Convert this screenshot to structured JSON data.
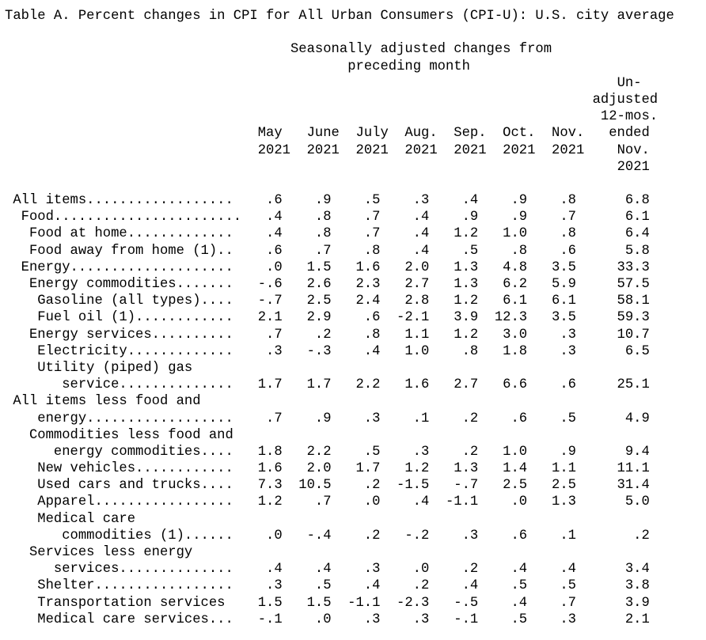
{
  "title": "Table A. Percent changes in CPI for All Urban Consumers (CPI-U): U.S. city average",
  "colors": {
    "text": "#000000",
    "background": "#ffffff"
  },
  "header": {
    "group_label_line1": "Seasonally adjusted changes from",
    "group_label_line2": "preceding month",
    "months": [
      "May",
      "June",
      "July",
      "Aug.",
      "Sep.",
      "Oct.",
      "Nov."
    ],
    "years": [
      "2021",
      "2021",
      "2021",
      "2021",
      "2021",
      "2021",
      "2021"
    ],
    "unadjusted_label_lines": [
      "Un-",
      "adjusted",
      "12-mos.",
      "ended",
      "Nov.",
      "2021"
    ]
  },
  "table": {
    "rows": [
      {
        "pre_lines": [],
        "label": " All items..................",
        "values": [
          ".6",
          ".9",
          ".5",
          ".3",
          ".4",
          ".9",
          ".8"
        ],
        "yr12": "6.8"
      },
      {
        "pre_lines": [],
        "label": "  Food.......................",
        "values": [
          ".4",
          ".8",
          ".7",
          ".4",
          ".9",
          ".9",
          ".7"
        ],
        "yr12": "6.1"
      },
      {
        "pre_lines": [],
        "label": "   Food at home.............",
        "values": [
          ".4",
          ".8",
          ".7",
          ".4",
          "1.2",
          "1.0",
          ".8"
        ],
        "yr12": "6.4"
      },
      {
        "pre_lines": [],
        "label": "   Food away from home (1)..",
        "values": [
          ".6",
          ".7",
          ".8",
          ".4",
          ".5",
          ".8",
          ".6"
        ],
        "yr12": "5.8"
      },
      {
        "pre_lines": [],
        "label": "  Energy....................",
        "values": [
          ".0",
          "1.5",
          "1.6",
          "2.0",
          "1.3",
          "4.8",
          "3.5"
        ],
        "yr12": "33.3"
      },
      {
        "pre_lines": [],
        "label": "   Energy commodities.......",
        "values": [
          "-.6",
          "2.6",
          "2.3",
          "2.7",
          "1.3",
          "6.2",
          "5.9"
        ],
        "yr12": "57.5"
      },
      {
        "pre_lines": [],
        "label": "    Gasoline (all types)....",
        "values": [
          "-.7",
          "2.5",
          "2.4",
          "2.8",
          "1.2",
          "6.1",
          "6.1"
        ],
        "yr12": "58.1"
      },
      {
        "pre_lines": [],
        "label": "    Fuel oil (1)............",
        "values": [
          "2.1",
          "2.9",
          ".6",
          "-2.1",
          "3.9",
          "12.3",
          "3.5"
        ],
        "yr12": "59.3"
      },
      {
        "pre_lines": [],
        "label": "   Energy services..........",
        "values": [
          ".7",
          ".2",
          ".8",
          "1.1",
          "1.2",
          "3.0",
          ".3"
        ],
        "yr12": "10.7"
      },
      {
        "pre_lines": [],
        "label": "    Electricity.............",
        "values": [
          ".3",
          "-.3",
          ".4",
          "1.0",
          ".8",
          "1.8",
          ".3"
        ],
        "yr12": "6.5"
      },
      {
        "pre_lines": [
          "    Utility (piped) gas"
        ],
        "label": "       service..............",
        "values": [
          "1.7",
          "1.7",
          "2.2",
          "1.6",
          "2.7",
          "6.6",
          ".6"
        ],
        "yr12": "25.1"
      },
      {
        "pre_lines": [
          " All items less food and"
        ],
        "label": "    energy..................",
        "values": [
          ".7",
          ".9",
          ".3",
          ".1",
          ".2",
          ".6",
          ".5"
        ],
        "yr12": "4.9"
      },
      {
        "pre_lines": [
          "   Commodities less food and"
        ],
        "label": "      energy commodities....",
        "values": [
          "1.8",
          "2.2",
          ".5",
          ".3",
          ".2",
          "1.0",
          ".9"
        ],
        "yr12": "9.4"
      },
      {
        "pre_lines": [],
        "label": "    New vehicles............",
        "values": [
          "1.6",
          "2.0",
          "1.7",
          "1.2",
          "1.3",
          "1.4",
          "1.1"
        ],
        "yr12": "11.1"
      },
      {
        "pre_lines": [],
        "label": "    Used cars and trucks....",
        "values": [
          "7.3",
          "10.5",
          ".2",
          "-1.5",
          "-.7",
          "2.5",
          "2.5"
        ],
        "yr12": "31.4"
      },
      {
        "pre_lines": [],
        "label": "    Apparel.................",
        "values": [
          "1.2",
          ".7",
          ".0",
          ".4",
          "-1.1",
          ".0",
          "1.3"
        ],
        "yr12": "5.0"
      },
      {
        "pre_lines": [
          "    Medical care"
        ],
        "label": "       commodities (1)......",
        "values": [
          ".0",
          "-.4",
          ".2",
          "-.2",
          ".3",
          ".6",
          ".1"
        ],
        "yr12": ".2"
      },
      {
        "pre_lines": [
          "   Services less energy"
        ],
        "label": "      services..............",
        "values": [
          ".4",
          ".4",
          ".3",
          ".0",
          ".2",
          ".4",
          ".4"
        ],
        "yr12": "3.4"
      },
      {
        "pre_lines": [],
        "label": "    Shelter.................",
        "values": [
          ".3",
          ".5",
          ".4",
          ".2",
          ".4",
          ".5",
          ".5"
        ],
        "yr12": "3.8"
      },
      {
        "pre_lines": [],
        "label": "    Transportation services",
        "values": [
          "1.5",
          "1.5",
          "-1.1",
          "-2.3",
          "-.5",
          ".4",
          ".7"
        ],
        "yr12": "3.9"
      },
      {
        "pre_lines": [],
        "label": "    Medical care services...",
        "values": [
          "-.1",
          ".0",
          ".3",
          ".3",
          "-.1",
          ".5",
          ".3"
        ],
        "yr12": "2.1"
      }
    ]
  }
}
